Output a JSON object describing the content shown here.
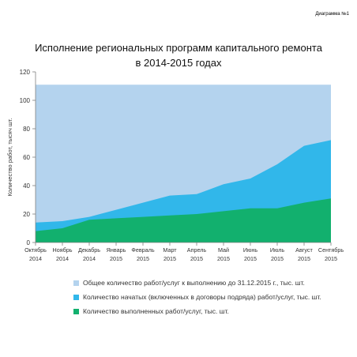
{
  "figure_label": "Диаграмма №1",
  "chart_data": {
    "type": "area",
    "title_lines": [
      "Исполнение региональных программ капитального ремонта",
      "в 2014-2015 годах"
    ],
    "xlabel": "",
    "ylabel": "Количество работ, тысяч шт.",
    "ylim": [
      0,
      120
    ],
    "yticks": [
      0,
      20,
      40,
      60,
      80,
      100,
      120
    ],
    "grid": false,
    "legend_position": "bottom",
    "categories": [
      [
        "Октябрь",
        "2014"
      ],
      [
        "Ноябрь",
        "2014"
      ],
      [
        "Декабрь",
        "2014"
      ],
      [
        "Январь",
        "2015"
      ],
      [
        "Февраль",
        "2015"
      ],
      [
        "Март",
        "2015"
      ],
      [
        "Апрель",
        "2015"
      ],
      [
        "Май",
        "2015"
      ],
      [
        "Июнь",
        "2015"
      ],
      [
        "Июль",
        "2015"
      ],
      [
        "Август",
        "2015"
      ],
      [
        "Сентябрь",
        "2015"
      ]
    ],
    "series": [
      {
        "name": "Общее количество работ/услуг к выполнению до 31.12.2015 г., тыс. шт.",
        "color": "#b4d3ee",
        "values": [
          111,
          111,
          111,
          111,
          111,
          111,
          111,
          111,
          111,
          111,
          111,
          111
        ]
      },
      {
        "name": "Количество начатых (включенных в договоры подряда) работ/услуг, тыс. шт.",
        "color": "#31b7ea",
        "values": [
          14,
          15,
          18,
          23,
          28,
          33,
          34,
          41,
          45,
          55,
          68,
          72
        ]
      },
      {
        "name": "Количество выполненных работ/услуг, тыс. шт.",
        "color": "#12b06e",
        "values": [
          8,
          10,
          16,
          17,
          18,
          19,
          20,
          22,
          24,
          24,
          28,
          31
        ]
      }
    ]
  }
}
